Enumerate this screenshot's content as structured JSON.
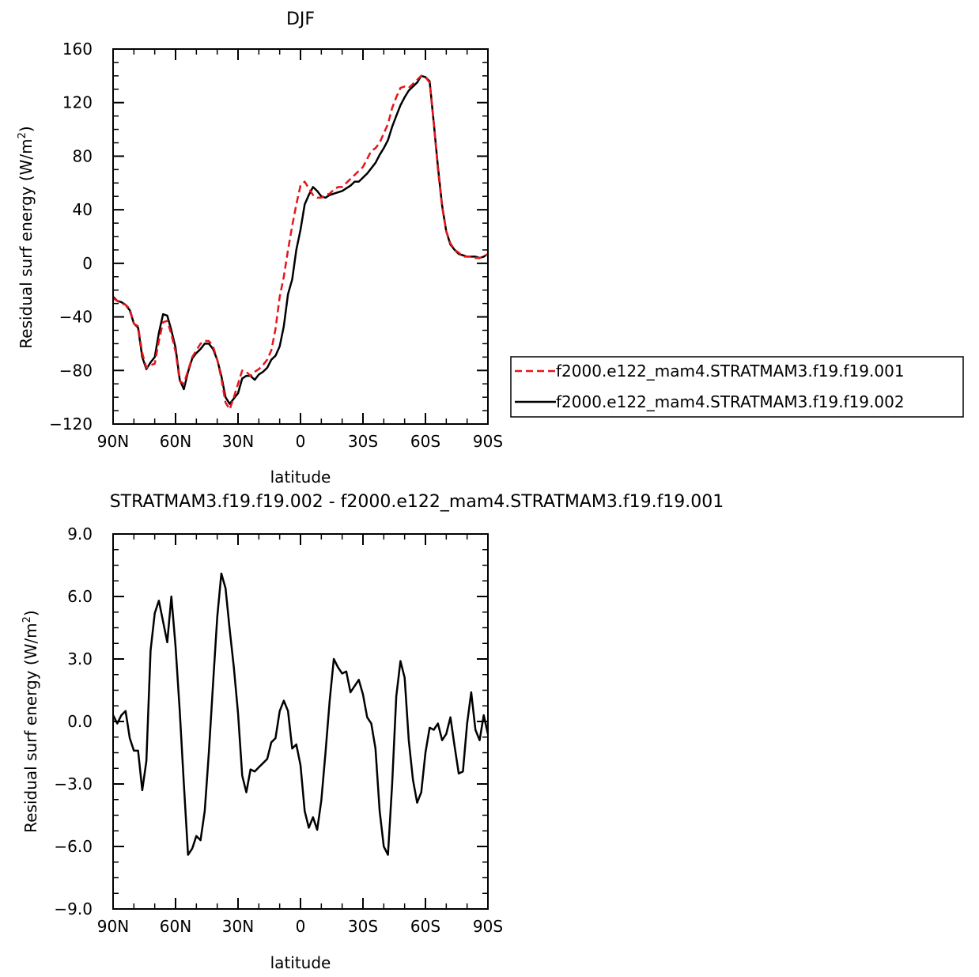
{
  "chart_data": [
    {
      "type": "line",
      "title": "DJF",
      "xlabel": "latitude",
      "ylabel": "Residual surf energy (W/m",
      "ylabel_sup": "2",
      "ylabel_close": ")",
      "xlim": [
        90,
        -90
      ],
      "ylim": [
        -120,
        160
      ],
      "yticks": [
        -120,
        -80,
        -40,
        0,
        40,
        80,
        120,
        160
      ],
      "xticks": [
        {
          "value": 90,
          "label": "90N"
        },
        {
          "value": 60,
          "label": "60N"
        },
        {
          "value": 30,
          "label": "30N"
        },
        {
          "value": 0,
          "label": "0"
        },
        {
          "value": -30,
          "label": "30S"
        },
        {
          "value": -60,
          "label": "60S"
        },
        {
          "value": -90,
          "label": "90S"
        }
      ],
      "legend_position": "right",
      "x": [
        90,
        88,
        86,
        84,
        82,
        80,
        78,
        76,
        74,
        72,
        70,
        68,
        66,
        64,
        62,
        60,
        58,
        56,
        54,
        52,
        50,
        48,
        46,
        44,
        42,
        40,
        38,
        36,
        34,
        32,
        30,
        28,
        26,
        24,
        22,
        20,
        18,
        16,
        14,
        12,
        10,
        8,
        6,
        4,
        2,
        0,
        -2,
        -4,
        -6,
        -8,
        -10,
        -12,
        -14,
        -16,
        -18,
        -20,
        -22,
        -24,
        -26,
        -28,
        -30,
        -32,
        -34,
        -36,
        -38,
        -40,
        -42,
        -44,
        -46,
        -48,
        -50,
        -52,
        -54,
        -56,
        -58,
        -60,
        -62,
        -64,
        -66,
        -68,
        -70,
        -72,
        -74,
        -76,
        -78,
        -80,
        -82,
        -84,
        -86,
        -88,
        -90
      ],
      "series": [
        {
          "name": "f2000.e122_mam4.STRATMAM3.f19.f19.001",
          "color": "#e8141b",
          "dash": true,
          "values": [
            -26,
            -28,
            -30,
            -31,
            -34,
            -45,
            -47,
            -67,
            -78,
            -76,
            -75,
            -58,
            -44,
            -43,
            -53,
            -66,
            -88,
            -90,
            -80,
            -70,
            -65,
            -60,
            -58,
            -58,
            -62,
            -72,
            -86,
            -104,
            -109,
            -100,
            -90,
            -80,
            -81,
            -84,
            -81,
            -79,
            -76,
            -72,
            -65,
            -49,
            -25,
            -10,
            10,
            28,
            44,
            58,
            61,
            56,
            51,
            49,
            49,
            51,
            52,
            55,
            57,
            57,
            60,
            63,
            66,
            69,
            72,
            78,
            84,
            86,
            90,
            97,
            104,
            116,
            124,
            131,
            132,
            131,
            134,
            137,
            140,
            139,
            135,
            105,
            70,
            42,
            24,
            15,
            10,
            8,
            5,
            5,
            5,
            4,
            4,
            5,
            7
          ]
        },
        {
          "name": "f2000.e122_mam4.STRATMAM3.f19.f19.002",
          "color": "#000000",
          "dash": false,
          "values": [
            -25,
            -28,
            -29,
            -31,
            -35,
            -45,
            -48,
            -70,
            -79,
            -74,
            -70,
            -52,
            -38,
            -39,
            -50,
            -63,
            -87,
            -94,
            -81,
            -71,
            -67,
            -64,
            -60,
            -60,
            -64,
            -72,
            -84,
            -100,
            -105,
            -101,
            -97,
            -86,
            -84,
            -84,
            -87,
            -83,
            -81,
            -78,
            -72,
            -69,
            -62,
            -47,
            -23,
            -12,
            10,
            25,
            44,
            51,
            57,
            54,
            50,
            49,
            51,
            52,
            53,
            54,
            56,
            58,
            61,
            61,
            64,
            67,
            71,
            75,
            81,
            86,
            92,
            102,
            110,
            118,
            124,
            129,
            132,
            135,
            140,
            139,
            136,
            105,
            72,
            43,
            24,
            14,
            10,
            7,
            6,
            5,
            5,
            5,
            4,
            5,
            7
          ]
        }
      ]
    },
    {
      "type": "line",
      "title": "STRATMAM3.f19.f19.002 - f2000.e122_mam4.STRATMAM3.f19.f19.001",
      "xlabel": "latitude",
      "ylabel": "Residual surf energy (W/m",
      "ylabel_sup": "2",
      "ylabel_close": ")",
      "xlim": [
        90,
        -90
      ],
      "ylim": [
        -9,
        9
      ],
      "yticks": [
        "-9.0",
        "-6.0",
        "-3.0",
        "0.0",
        "3.0",
        "6.0",
        "9.0"
      ],
      "xticks": [
        {
          "value": 90,
          "label": "90N"
        },
        {
          "value": 60,
          "label": "60N"
        },
        {
          "value": 30,
          "label": "30N"
        },
        {
          "value": 0,
          "label": "0"
        },
        {
          "value": -30,
          "label": "30S"
        },
        {
          "value": -60,
          "label": "60S"
        },
        {
          "value": -90,
          "label": "90S"
        }
      ],
      "series": [
        {
          "color": "#000000",
          "dash": false,
          "values": [
            0.3,
            -0.1,
            0.3,
            0.5,
            -0.8,
            -1.4,
            -1.4,
            -3.3,
            -1.9,
            3.4,
            5.2,
            5.8,
            4.8,
            3.8,
            6.0,
            3.6,
            0.5,
            -3.0,
            -6.4,
            -6.1,
            -5.5,
            -5.7,
            -4.3,
            -1.5,
            1.8,
            5.0,
            7.1,
            6.4,
            4.4,
            2.6,
            0.4,
            -2.6,
            -3.4,
            -2.3,
            -2.4,
            -2.2,
            -2.0,
            -1.8,
            -1.0,
            -0.8,
            0.5,
            1.0,
            0.5,
            -1.3,
            -1.1,
            -2.1,
            -4.3,
            -5.1,
            -4.6,
            -5.2,
            -3.8,
            -1.5,
            1.0,
            3.0,
            2.6,
            2.3,
            2.4,
            1.4,
            1.7,
            2.0,
            1.3,
            0.2,
            -0.1,
            -1.3,
            -4.3,
            -6.0,
            -6.4,
            -3.0,
            1.2,
            2.9,
            2.1,
            -0.9,
            -2.8,
            -3.9,
            -3.4,
            -1.5,
            -0.3,
            -0.4,
            -0.1,
            -0.9,
            -0.6,
            0.2,
            -1.2,
            -2.5,
            -2.4,
            -0.1,
            1.4,
            -0.4,
            -0.9,
            0.3,
            -0.6
          ]
        }
      ]
    }
  ]
}
